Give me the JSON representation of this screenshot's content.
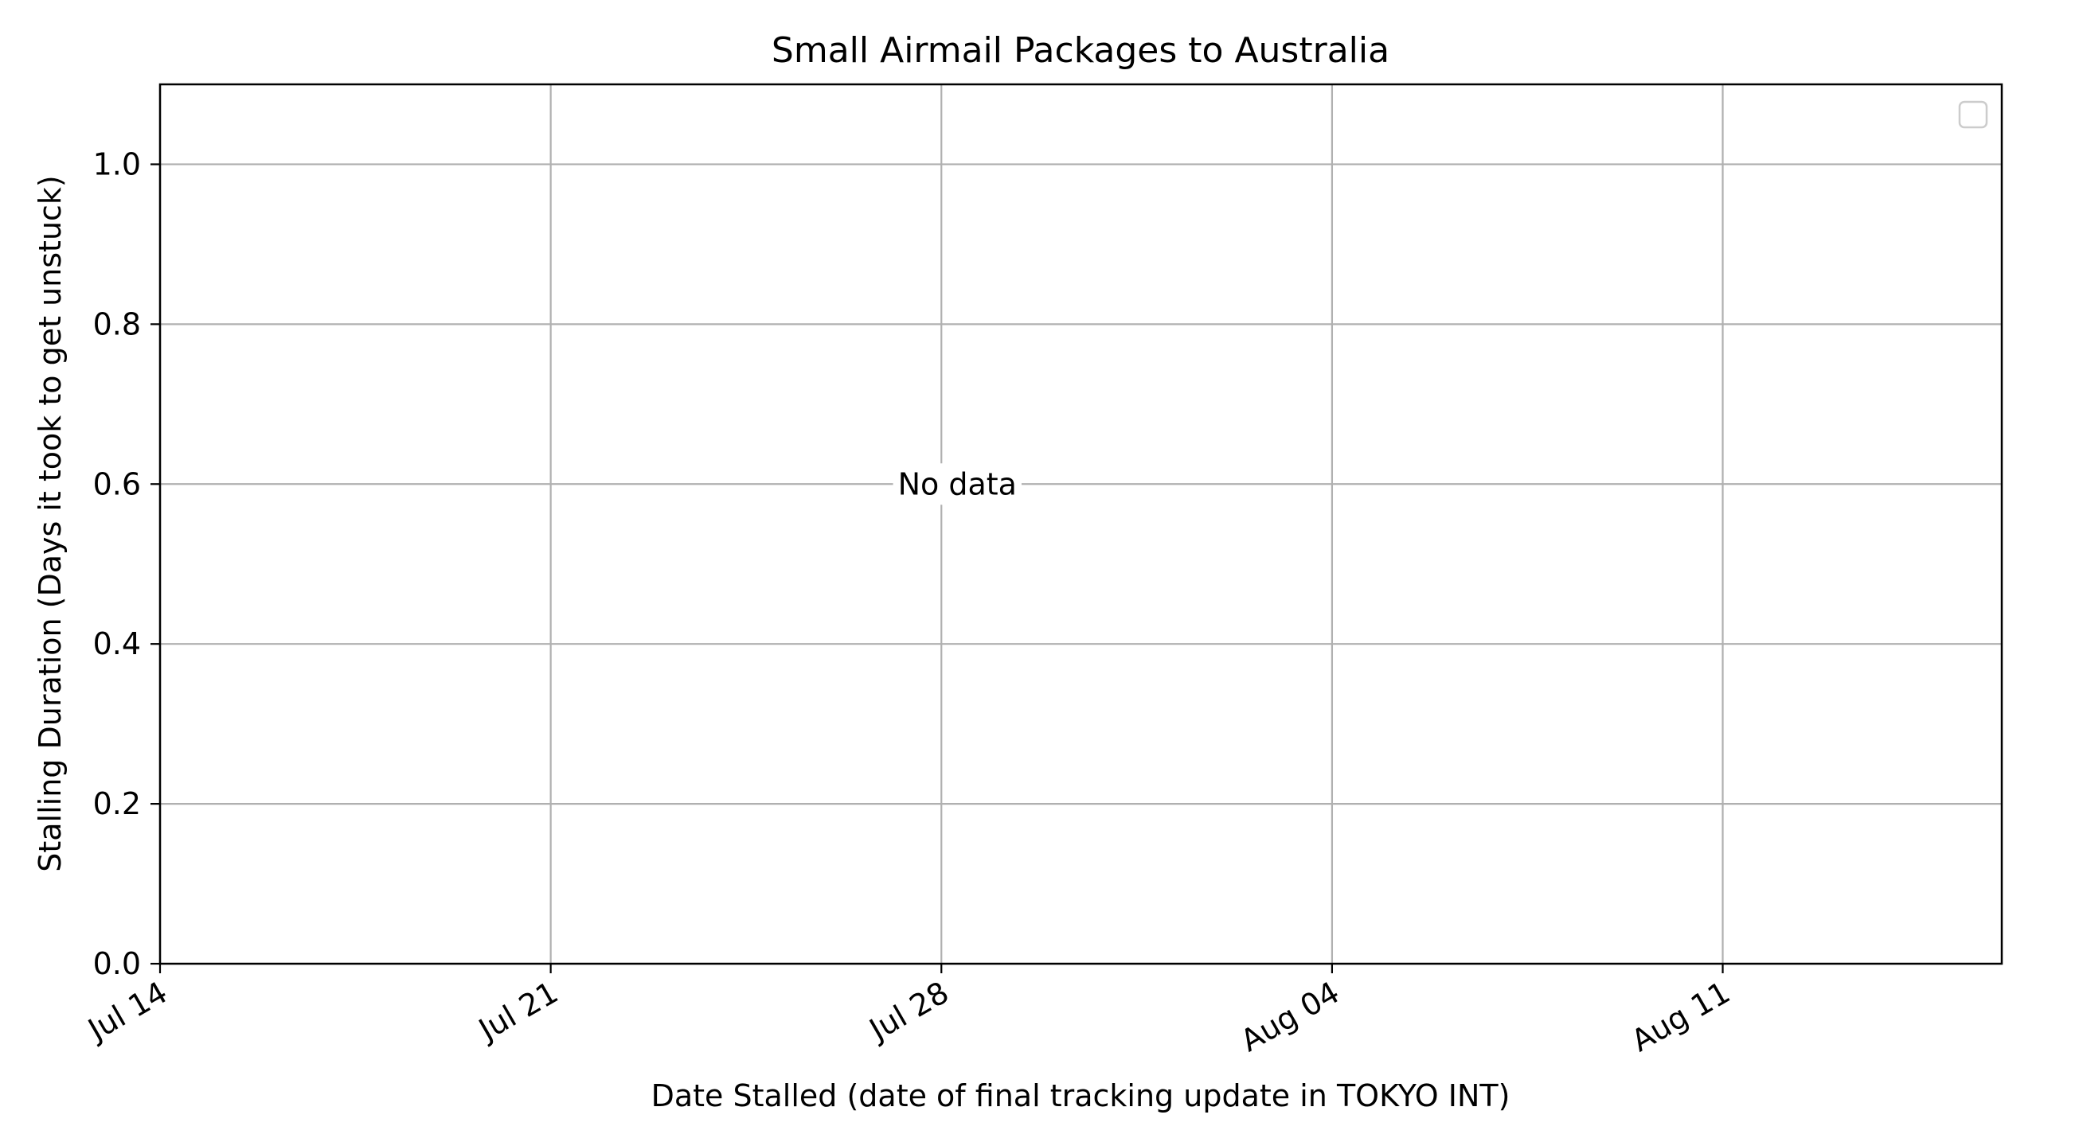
{
  "chart_data": {
    "type": "scatter",
    "title": "Small Airmail Packages to Australia",
    "xlabel": "Date Stalled (date of final tracking update in TOKYO INT)",
    "ylabel": "Stalling Duration (Days it took to get unstuck)",
    "x_type": "date",
    "xlim": [
      "2024-07-14",
      "2024-08-16"
    ],
    "ylim": [
      0,
      1.1
    ],
    "x_ticks": [
      {
        "value": "2024-07-14",
        "label": "Jul 14"
      },
      {
        "value": "2024-07-21",
        "label": "Jul 21"
      },
      {
        "value": "2024-07-28",
        "label": "Jul 28"
      },
      {
        "value": "2024-08-04",
        "label": "Aug 04"
      },
      {
        "value": "2024-08-11",
        "label": "Aug 11"
      }
    ],
    "y_ticks": [
      {
        "value": 0.0,
        "label": "0.0"
      },
      {
        "value": 0.2,
        "label": "0.2"
      },
      {
        "value": 0.4,
        "label": "0.4"
      },
      {
        "value": 0.6,
        "label": "0.6"
      },
      {
        "value": 0.8,
        "label": "0.8"
      },
      {
        "value": 1.0,
        "label": "1.0"
      }
    ],
    "grid": true,
    "legend": "upper-right",
    "legend_entries": [],
    "series": [],
    "annotations": [
      {
        "text": "No data",
        "x": "2024-07-28",
        "y": 0.6
      }
    ]
  },
  "colors": {
    "axis": "#000000",
    "grid": "#b0b0b0",
    "background": "#ffffff",
    "legend_border": "#cccccc"
  }
}
